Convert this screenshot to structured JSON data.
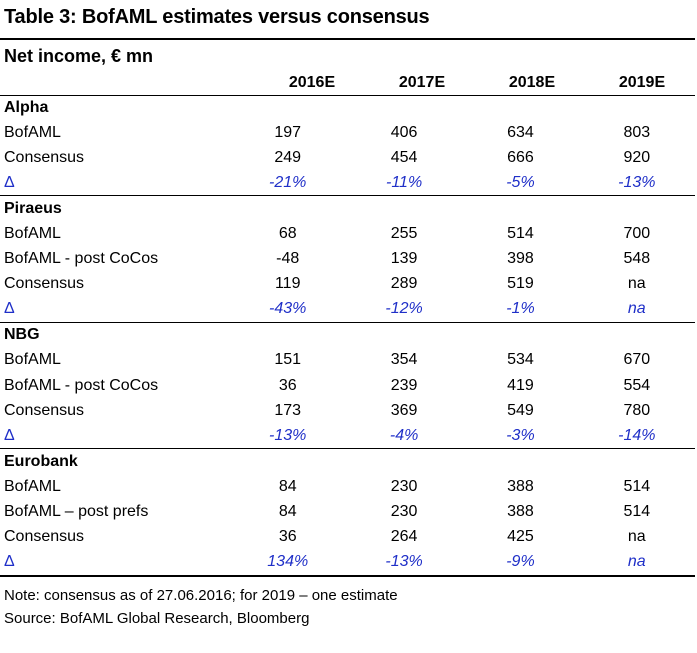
{
  "title": "Table 3: BofAML estimates versus consensus",
  "subtitle": "Net income, € mn",
  "columns": [
    "2016E",
    "2017E",
    "2018E",
    "2019E"
  ],
  "sections": [
    {
      "name": "Alpha",
      "rows": [
        {
          "label": "BofAML",
          "values": [
            "197",
            "406",
            "634",
            "803"
          ],
          "delta": false
        },
        {
          "label": "Consensus",
          "values": [
            "249",
            "454",
            "666",
            "920"
          ],
          "delta": false
        },
        {
          "label": "Δ",
          "values": [
            "-21%",
            "-11%",
            "-5%",
            "-13%"
          ],
          "delta": true
        }
      ]
    },
    {
      "name": "Piraeus",
      "rows": [
        {
          "label": "BofAML",
          "values": [
            "68",
            "255",
            "514",
            "700"
          ],
          "delta": false
        },
        {
          "label": "BofAML - post CoCos",
          "values": [
            "-48",
            "139",
            "398",
            "548"
          ],
          "delta": false
        },
        {
          "label": "Consensus",
          "values": [
            "119",
            "289",
            "519",
            "na"
          ],
          "delta": false
        },
        {
          "label": "Δ",
          "values": [
            "-43%",
            "-12%",
            "-1%",
            "na"
          ],
          "delta": true
        }
      ]
    },
    {
      "name": "NBG",
      "rows": [
        {
          "label": "BofAML",
          "values": [
            "151",
            "354",
            "534",
            "670"
          ],
          "delta": false
        },
        {
          "label": "BofAML - post CoCos",
          "values": [
            "36",
            "239",
            "419",
            "554"
          ],
          "delta": false
        },
        {
          "label": "Consensus",
          "values": [
            "173",
            "369",
            "549",
            "780"
          ],
          "delta": false
        },
        {
          "label": "Δ",
          "values": [
            "-13%",
            "-4%",
            "-3%",
            "-14%"
          ],
          "delta": true
        }
      ]
    },
    {
      "name": "Eurobank",
      "rows": [
        {
          "label": "BofAML",
          "values": [
            "84",
            "230",
            "388",
            "514"
          ],
          "delta": false
        },
        {
          "label": "BofAML – post prefs",
          "values": [
            "84",
            "230",
            "388",
            "514"
          ],
          "delta": false
        },
        {
          "label": "Consensus",
          "values": [
            "36",
            "264",
            "425",
            "na"
          ],
          "delta": false
        },
        {
          "label": "Δ",
          "values": [
            "134%",
            "-13%",
            "-9%",
            "na"
          ],
          "delta": true
        }
      ]
    }
  ],
  "notes": {
    "note": "Note: consensus as of 27.06.2016; for 2019 – one estimate",
    "source": "Source: BofAML Global Research, Bloomberg"
  }
}
